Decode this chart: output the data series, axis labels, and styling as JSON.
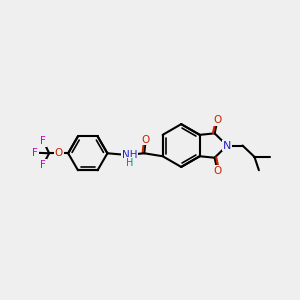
{
  "background_color": "#efefef",
  "bond_color": "#000000",
  "bond_width": 1.5,
  "N_color": "#2222cc",
  "O_color": "#cc2200",
  "F_color": "#cc00cc",
  "NH_color": "#008888",
  "fig_width": 3.0,
  "fig_height": 3.0,
  "xlim": [
    0,
    10
  ],
  "ylim": [
    0,
    10
  ]
}
